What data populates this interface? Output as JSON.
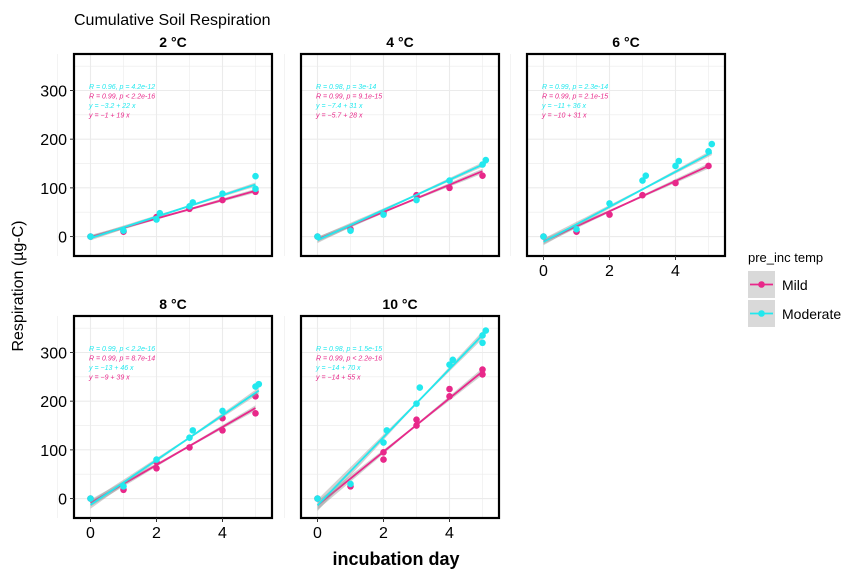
{
  "title": "Cumulative Soil Respiration",
  "colors": {
    "mild": "#E8288A",
    "moderate": "#22E8EE",
    "band": "#9A9A9A",
    "grid": "#EBEBEB",
    "frame": "#000000",
    "axis_text": "#000000"
  },
  "chart_data": {
    "type": "scatter",
    "title": "Cumulative Soil Respiration",
    "xlabel": "incubation day",
    "ylabel": "Respiration (µg-C)",
    "xlim": [
      -0.5,
      5.5
    ],
    "ylim": [
      -40,
      375
    ],
    "x_ticks": [
      0,
      2,
      4
    ],
    "y_ticks": [
      0,
      100,
      200,
      300
    ],
    "grid": true,
    "smooth": "linear fit with confidence band",
    "legend": {
      "title": "pre_inc temp",
      "placement": "right",
      "entries": [
        {
          "name": "Mild",
          "color": "#E8288A"
        },
        {
          "name": "Moderate",
          "color": "#22E8EE"
        }
      ]
    },
    "panels": [
      {
        "label": "2 °C",
        "annotations": {
          "moderate_r": "R = 0.96, p = 4.2e-12",
          "mild_r": "R = 0.99, p < 2.2e-16",
          "moderate_eq": "y = −3.2 + 22 x",
          "mild_eq": "y = −1 + 19 x"
        },
        "series": [
          {
            "name": "Mild",
            "fit": [
              -1,
              19
            ],
            "points": [
              [
                0,
                0
              ],
              [
                1,
                10
              ],
              [
                2,
                40
              ],
              [
                3,
                57
              ],
              [
                4,
                75
              ],
              [
                5,
                92
              ]
            ]
          },
          {
            "name": "Moderate",
            "fit": [
              -3.2,
              22
            ],
            "points": [
              [
                0,
                0
              ],
              [
                1,
                12
              ],
              [
                2,
                35
              ],
              [
                2.1,
                48
              ],
              [
                3,
                62
              ],
              [
                3.1,
                70
              ],
              [
                4,
                88
              ],
              [
                5,
                98
              ],
              [
                5,
                124
              ]
            ]
          }
        ]
      },
      {
        "label": "4 °C",
        "annotations": {
          "moderate_r": "R = 0.98, p = 3e-14",
          "mild_r": "R = 0.99, p = 9.1e-15",
          "moderate_eq": "y = −7.4 + 31 x",
          "mild_eq": "y = −5.7 + 28 x"
        },
        "series": [
          {
            "name": "Mild",
            "fit": [
              -5.7,
              28
            ],
            "points": [
              [
                0,
                0
              ],
              [
                1,
                15
              ],
              [
                2,
                48
              ],
              [
                3,
                85
              ],
              [
                4,
                100
              ],
              [
                5,
                125
              ]
            ]
          },
          {
            "name": "Moderate",
            "fit": [
              -7.4,
              31
            ],
            "points": [
              [
                0,
                0
              ],
              [
                1,
                12
              ],
              [
                2,
                45
              ],
              [
                3,
                75
              ],
              [
                4,
                115
              ],
              [
                5,
                148
              ],
              [
                5.1,
                157
              ]
            ]
          }
        ]
      },
      {
        "label": "6 °C",
        "annotations": {
          "moderate_r": "R = 0.99, p = 2.3e-14",
          "mild_r": "R = 0.99, p = 2.1e-15",
          "moderate_eq": "y = −11 + 36 x",
          "mild_eq": "y = −10 + 31 x"
        },
        "series": [
          {
            "name": "Mild",
            "fit": [
              -10,
              31
            ],
            "points": [
              [
                0,
                0
              ],
              [
                1,
                10
              ],
              [
                2,
                45
              ],
              [
                3,
                85
              ],
              [
                4,
                110
              ],
              [
                5,
                145
              ]
            ]
          },
          {
            "name": "Moderate",
            "fit": [
              -11,
              36
            ],
            "points": [
              [
                0,
                0
              ],
              [
                1,
                15
              ],
              [
                2,
                68
              ],
              [
                3,
                115
              ],
              [
                3.1,
                125
              ],
              [
                4,
                145
              ],
              [
                4.1,
                155
              ],
              [
                5,
                175
              ],
              [
                5.1,
                190
              ]
            ]
          }
        ]
      },
      {
        "label": "8 °C",
        "annotations": {
          "moderate_r": "R = 0.99, p < 2.2e-16",
          "mild_r": "R = 0.99, p = 8.7e-14",
          "moderate_eq": "y = −13 + 46 x",
          "mild_eq": "y = −9 + 39 x"
        },
        "series": [
          {
            "name": "Mild",
            "fit": [
              -9,
              39
            ],
            "points": [
              [
                0,
                0
              ],
              [
                1,
                18
              ],
              [
                2,
                62
              ],
              [
                2,
                75
              ],
              [
                3,
                105
              ],
              [
                4,
                140
              ],
              [
                4,
                165
              ],
              [
                5,
                175
              ],
              [
                5,
                210
              ]
            ]
          },
          {
            "name": "Moderate",
            "fit": [
              -13,
              46
            ],
            "points": [
              [
                0,
                0
              ],
              [
                1,
                25
              ],
              [
                2,
                80
              ],
              [
                3,
                125
              ],
              [
                3.1,
                140
              ],
              [
                4,
                180
              ],
              [
                5,
                230
              ],
              [
                5.1,
                235
              ]
            ]
          }
        ]
      },
      {
        "label": "10 °C",
        "annotations": {
          "moderate_r": "R = 0.98, p = 1.5e-15",
          "mild_r": "R = 0.99, p < 2.2e-16",
          "moderate_eq": "y = −14 + 70 x",
          "mild_eq": "y = −14 + 55 x"
        },
        "series": [
          {
            "name": "Mild",
            "fit": [
              -14,
              55
            ],
            "points": [
              [
                0,
                0
              ],
              [
                1,
                25
              ],
              [
                2,
                80
              ],
              [
                2,
                95
              ],
              [
                3,
                150
              ],
              [
                3,
                162
              ],
              [
                4,
                210
              ],
              [
                4,
                225
              ],
              [
                5,
                255
              ],
              [
                5,
                265
              ]
            ]
          },
          {
            "name": "Moderate",
            "fit": [
              -14,
              70
            ],
            "points": [
              [
                0,
                0
              ],
              [
                1,
                30
              ],
              [
                2,
                115
              ],
              [
                2.1,
                140
              ],
              [
                3,
                195
              ],
              [
                3.1,
                228
              ],
              [
                4,
                275
              ],
              [
                4.1,
                285
              ],
              [
                5,
                320
              ],
              [
                5,
                335
              ],
              [
                5.1,
                345
              ]
            ]
          }
        ]
      }
    ]
  }
}
